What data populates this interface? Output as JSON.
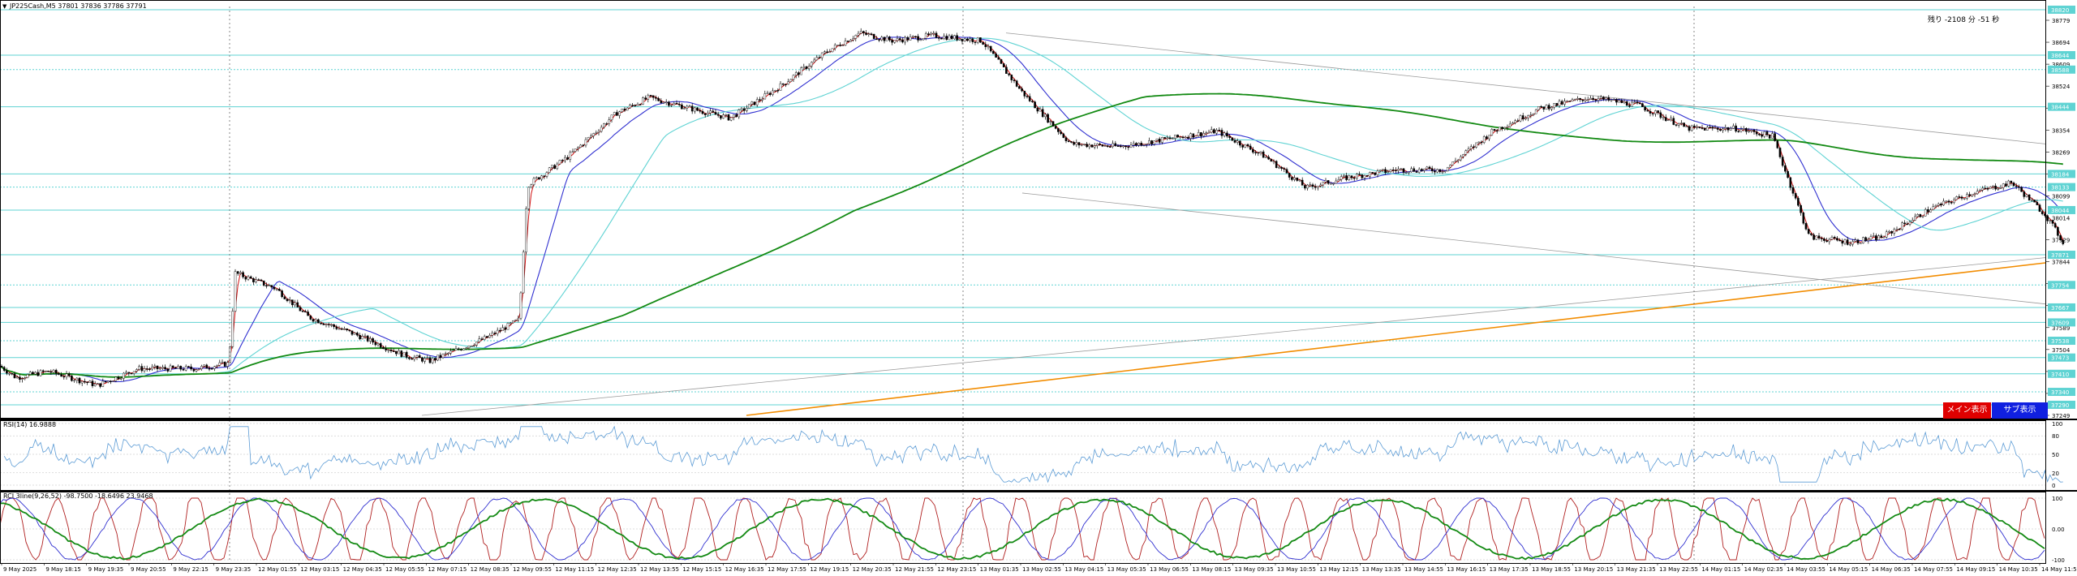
{
  "window": {
    "symbol_line": "JP225Cash,M5  37801 37836 37786 37791",
    "remaining_time": "残り -2108 分 -51 秒"
  },
  "main_panel": {
    "price_ticks": [
      "38779",
      "38694",
      "38609",
      "38524",
      "38439",
      "38354",
      "38269",
      "38184",
      "38099",
      "38014",
      "37929",
      "37844",
      "37759",
      "37674",
      "37589",
      "37504",
      "37419",
      "37334",
      "37249"
    ],
    "highlight_labels": [
      "38820",
      "38644",
      "38588",
      "38444",
      "38184",
      "38133",
      "38044",
      "37871",
      "37754",
      "37667",
      "37609",
      "37538",
      "37473",
      "37410",
      "37340",
      "37290"
    ],
    "line_colors": {
      "cyan": "#5fd3d3",
      "green": "#138a13",
      "blue": "#3030d0",
      "orange": "#f28c00",
      "gray": "#9a9a9a",
      "candle": "#000000",
      "red_ma": "#d01010"
    },
    "main_button_label": "メイン表示",
    "sub_button_label": "サブ表示",
    "main_button_color": "#e00000",
    "sub_button_color": "#1020e0"
  },
  "rsi_panel": {
    "title": "RSI(14) 16.9888",
    "ticks": [
      "100",
      "80",
      "50",
      "20",
      "0"
    ],
    "line_color": "#5b9bd5"
  },
  "rci_panel": {
    "title": "RCI 3line(9,26,52) -98.7500 -18.6496 23.9468",
    "ticks": [
      "100",
      "0.00",
      "-100"
    ],
    "line_colors": {
      "short": "#b02020",
      "mid": "#3030d0",
      "long": "#138a13"
    }
  },
  "time_axis": {
    "labels": [
      "9 May 2025",
      "9 May 18:15",
      "9 May 19:35",
      "9 May 20:55",
      "9 May 22:15",
      "9 May 23:35",
      "12 May 01:55",
      "12 May 03:15",
      "12 May 04:35",
      "12 May 05:55",
      "12 May 07:15",
      "12 May 08:35",
      "12 May 09:55",
      "12 May 11:15",
      "12 May 12:35",
      "12 May 13:55",
      "12 May 15:15",
      "12 May 16:35",
      "12 May 17:55",
      "12 May 19:15",
      "12 May 20:35",
      "12 May 21:55",
      "12 May 23:15",
      "13 May 01:35",
      "13 May 02:55",
      "13 May 04:15",
      "13 May 05:35",
      "13 May 06:55",
      "13 May 08:15",
      "13 May 09:35",
      "13 May 10:55",
      "13 May 12:15",
      "13 May 13:35",
      "13 May 14:55",
      "13 May 16:15",
      "13 May 17:35",
      "13 May 18:55",
      "13 May 20:15",
      "13 May 21:35",
      "13 May 22:55",
      "14 May 01:15",
      "14 May 02:35",
      "14 May 03:55",
      "14 May 05:15",
      "14 May 06:35",
      "14 May 07:55",
      "14 May 09:15",
      "14 May 10:35",
      "14 May 11:55"
    ]
  }
}
